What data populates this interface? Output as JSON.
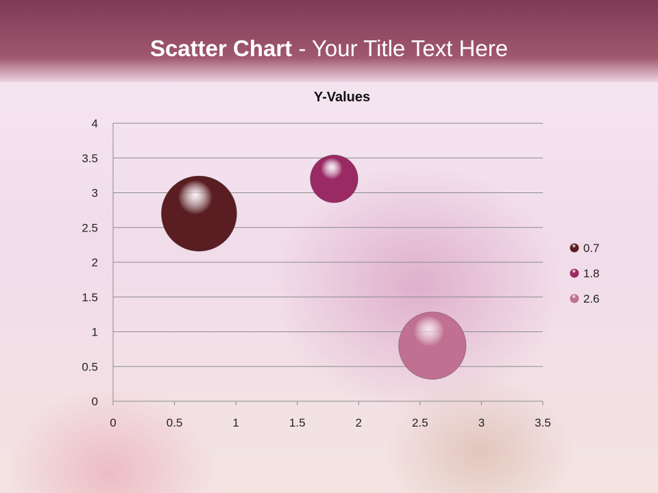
{
  "slide": {
    "title_bold": "Scatter Chart",
    "title_rest": " - Your Title Text Here"
  },
  "chart_data": {
    "type": "bubble",
    "title": "Y-Values",
    "x": [
      0.7,
      1.8,
      2.6
    ],
    "y": [
      2.7,
      3.2,
      0.8
    ],
    "sizes": [
      10,
      4,
      8
    ],
    "colors": [
      "#5a1e22",
      "#9a2a64",
      "#c07090"
    ],
    "legend": [
      "0.7",
      "1.8",
      "2.6"
    ],
    "legend_position": "right",
    "xlim": [
      0,
      3.5
    ],
    "ylim": [
      0,
      4
    ],
    "xticks": [
      "0",
      "0.5",
      "1",
      "1.5",
      "2",
      "2.5",
      "3",
      "3.5"
    ],
    "yticks": [
      "0",
      "0.5",
      "1",
      "1.5",
      "2",
      "2.5",
      "3",
      "3.5",
      "4"
    ],
    "grid": "horizontal"
  }
}
